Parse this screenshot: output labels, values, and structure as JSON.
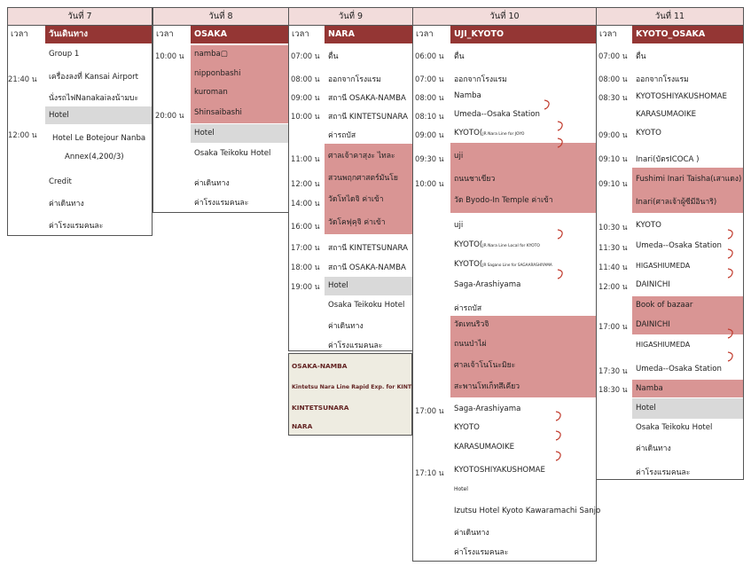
{
  "days": [
    {
      "header": "วันที่ 7",
      "time_col": "เวลา",
      "region": "วันเดินทาง",
      "times": [
        "21:40 น",
        "12:00 น"
      ],
      "items": [
        {
          "text": "Group 1"
        },
        {
          "text": "เครื่องลงที่ Kansai Airport"
        },
        {
          "text": "นั่งรถไฟNanakaiลงน้ามบะ"
        },
        {
          "text": "Hotel",
          "style": "gray"
        },
        {
          "text": "Hotel Le Botejour Nanba"
        },
        {
          "text": "Annex(4,200/3)"
        },
        {
          "text": "Credit"
        },
        {
          "text": "ค่าเดินทาง"
        },
        {
          "text": "ค่าโรงแรมคนละ"
        }
      ]
    },
    {
      "header": "วันที่ 8",
      "time_col": "เวลา",
      "region": "OSAKA",
      "times": [
        "10:00 น",
        "20:00 น"
      ],
      "items": [
        {
          "text": "namba▢",
          "style": "pink"
        },
        {
          "text": "nipponbashi",
          "style": "pink"
        },
        {
          "text": "kuroman",
          "style": "pink"
        },
        {
          "text": "Shinsaibashi",
          "style": "pink"
        },
        {
          "text": "Hotel",
          "style": "gray"
        },
        {
          "text": "Osaka Teikoku Hotel"
        },
        {
          "text": "ค่าเดินทาง"
        },
        {
          "text": "ค่าโรงแรมคนละ"
        }
      ]
    },
    {
      "header": "วันที่ 9",
      "time_col": "เวลา",
      "region": "NARA",
      "times": [
        "07:00 น",
        "08:00 น",
        "09:00 น",
        "10:00 น",
        "11:00 น",
        "12:00 น",
        "14:00 น",
        "16:00 น",
        "17:00 น",
        "18:00 น",
        "19:00 น"
      ],
      "items": [
        {
          "text": "ตื่น"
        },
        {
          "text": "ออกจากโรงแรม"
        },
        {
          "text": "สถานี OSAKA-NAMBA"
        },
        {
          "text": "สถานี KINTETSUNARA"
        },
        {
          "text": "ค่ารถบัส"
        },
        {
          "text": "ศาลเจ้าคาสุงะ ไทละ",
          "style": "pink"
        },
        {
          "text": "สวนพฤกศาสตร์มันโย",
          "style": "pink"
        },
        {
          "text": "วัดโทไดจิ ค่าเข้า",
          "style": "pink"
        },
        {
          "text": "วัดโคฟุคุจิ ค่าเข้า",
          "style": "pink"
        },
        {
          "text": "สถานี KINTETSUNARA"
        },
        {
          "text": "สถานี OSAKA-NAMBA"
        },
        {
          "text": "Hotel",
          "style": "gray"
        },
        {
          "text": "Osaka Teikoku Hotel"
        },
        {
          "text": "ค่าเดินทาง"
        },
        {
          "text": "ค่าโรงแรมคนละ"
        }
      ]
    },
    {
      "header": "วันที่ 10",
      "time_col": "เวลา",
      "region": "UJI_KYOTO",
      "times": [
        "06:00 น",
        "07:00 น",
        "08:00 น",
        "08:10 น",
        "09:00 น",
        "09:30 น",
        "10:00 น",
        "17:00 น",
        "17:10 น"
      ],
      "items": [
        {
          "text": "ตื่น"
        },
        {
          "text": "ออกจากโรงแรม"
        },
        {
          "text": "Namba"
        },
        {
          "text": "Umeda--Osaka Station"
        },
        {
          "text": "KYOTO(",
          "note": "JR Nara Line for JOYO"
        },
        {
          "text": "uji",
          "style": "pink"
        },
        {
          "text": "ถนนชาเขียว",
          "style": "pink"
        },
        {
          "text": "วัด Byodo-In Temple ค่าเข้า",
          "style": "pink"
        },
        {
          "text": "uji"
        },
        {
          "text": "KYOTO(",
          "note": "JR Nara Line Local for KYOTO"
        },
        {
          "text": "KYOTO(",
          "note": "JR Sagano Line for SAGAARASHIYAMA"
        },
        {
          "text": "Saga-Arashiyama"
        },
        {
          "text": "ค่ารถบัส"
        },
        {
          "text": "วัดเทนริวจิ",
          "style": "pink"
        },
        {
          "text": "ถนนป่าไผ่",
          "style": "pink"
        },
        {
          "text": "ศาลเจ้าโนโนะมิยะ",
          "style": "pink"
        },
        {
          "text": "สะพานโทเก็ทสึเคียว",
          "style": "pink"
        },
        {
          "text": "Saga-Arashiyama"
        },
        {
          "text": "KYOTO"
        },
        {
          "text": "KARASUMAOIKE"
        },
        {
          "text": "KYOTOSHIYAKUSHOMAE"
        },
        {
          "text": "Hotel"
        },
        {
          "text": "Izutsu Hotel Kyoto Kawaramachi Sanjo"
        },
        {
          "text": "ค่าเดินทาง"
        },
        {
          "text": "ค่าโรงแรมคนละ"
        }
      ]
    },
    {
      "header": "วันที่ 11",
      "time_col": "เวลา",
      "region": "KYOTO_OSAKA",
      "times": [
        "07:00 น",
        "08:00 น",
        "08:30 น",
        "09:00 น",
        "09:10 น",
        "09:10 น",
        "10:30 น",
        "11:30 น",
        "11:40 น",
        "12:00 น",
        "17:00 น",
        "17:30 น",
        "18:30 น"
      ],
      "items": [
        {
          "text": "ตื่น"
        },
        {
          "text": "ออกจากโรงแรม"
        },
        {
          "text": "KYOTOSHIYAKUSHOMAE"
        },
        {
          "text": "KARASUMAOIKE"
        },
        {
          "text": "KYOTO"
        },
        {
          "text": "Inari(บัตรICOCA )"
        },
        {
          "text": "Fushimi Inari Taisha(เสาแดง)",
          "style": "pink"
        },
        {
          "text": "Inari(ศาลเจ้าผู้ซีมีอินาริ)",
          "style": "pink"
        },
        {
          "text": "KYOTO"
        },
        {
          "text": "Umeda--Osaka Station"
        },
        {
          "text": "HIGASHIUMEDA"
        },
        {
          "text": "DAINICHI"
        },
        {
          "text": "Book of bazaar",
          "style": "pink"
        },
        {
          "text": "DAINICHI",
          "style": "pink"
        },
        {
          "text": "HIGASHIUMEDA"
        },
        {
          "text": "Umeda--Osaka Station"
        },
        {
          "text": "Namba",
          "style": "pink"
        },
        {
          "text": "Hotel",
          "style": "gray"
        },
        {
          "text": "Osaka Teikoku Hotel"
        },
        {
          "text": "ค่าเดินทาง"
        },
        {
          "text": "ค่าโรงแรมคนละ"
        }
      ]
    }
  ],
  "legend": [
    "OSAKA-NAMBA",
    "Kintetsu Nara Line Rapid Exp.  for KINTETSUNARA",
    "KINTETSUNARA",
    "NARA"
  ],
  "colors": {
    "header_bg": "#f2dcdb",
    "region_bg": "#943634",
    "highlight_pink": "#d99594",
    "highlight_gray": "#d9d9d9",
    "legend_bg": "#eeece1",
    "legend_text": "#632423",
    "transfer_arrow": "#c0392b"
  },
  "icons": [
    "transfer-curl-icon"
  ]
}
